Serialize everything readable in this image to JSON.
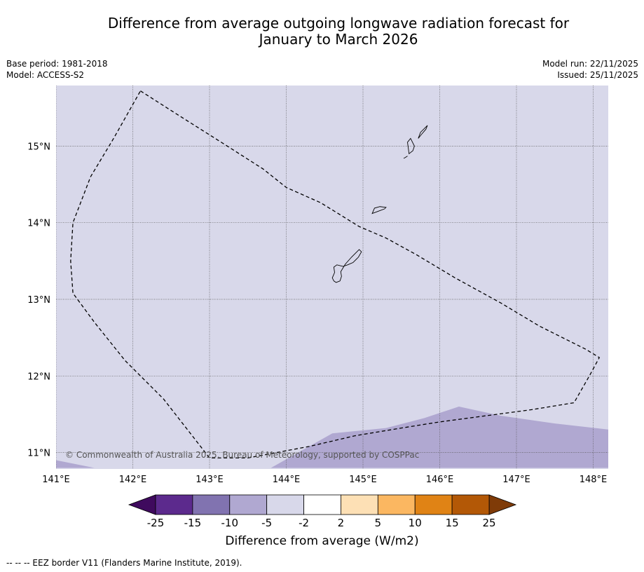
{
  "title_line1": "Difference from average outgoing longwave radiation forecast for",
  "title_line2": "January to March 2026",
  "base_period": "Base period: 1981-2018",
  "model": "Model: ACCESS-S2",
  "model_run": "Model run: 22/11/2025",
  "issued": "Issued: 25/11/2025",
  "copyright": "© Commonwealth of Australia 2025, Bureau of Meteorology, supported by COSPPac",
  "lon_labels": [
    "141°E",
    "142°E",
    "143°E",
    "144°E",
    "145°E",
    "146°E",
    "147°E",
    "148°E"
  ],
  "lat_labels": [
    "15°N",
    "14°N",
    "13°N",
    "12°N",
    "11°N"
  ],
  "colorbar": {
    "ticks": [
      "-25",
      "-15",
      "-10",
      "-5",
      "-2",
      "2",
      "5",
      "10",
      "15",
      "25"
    ],
    "colors": [
      "#3f0a5e",
      "#5c2a8d",
      "#8173b0",
      "#b0a8d1",
      "#d8d8ea",
      "#ffffff",
      "#fde0b5",
      "#fbb761",
      "#e08315",
      "#b35806",
      "#7f3b08"
    ],
    "label": "Difference from average (W/m2)"
  },
  "footnote": "--  --  -- EEZ border V11 (Flanders Marine Institute, 2019).",
  "map": {
    "lon_range": [
      141.0,
      148.2
    ],
    "lat_range": [
      10.8,
      15.8
    ],
    "background_fill": "#d8d8ea",
    "anomaly_fill": "#b0a8d1",
    "anomaly_region": [
      [
        141.0,
        10.9
      ],
      [
        141.5,
        10.8
      ],
      [
        143.8,
        10.8
      ],
      [
        144.6,
        11.25
      ],
      [
        145.3,
        11.32
      ],
      [
        145.8,
        11.45
      ],
      [
        146.25,
        11.6
      ],
      [
        146.8,
        11.48
      ],
      [
        147.5,
        11.38
      ],
      [
        148.2,
        11.3
      ],
      [
        148.2,
        10.8
      ],
      [
        141.0,
        10.8
      ]
    ],
    "eez_border": [
      [
        142.1,
        15.72
      ],
      [
        142.6,
        15.4
      ],
      [
        143.2,
        15.02
      ],
      [
        143.7,
        14.7
      ],
      [
        144.0,
        14.46
      ],
      [
        144.45,
        14.26
      ],
      [
        144.95,
        13.95
      ],
      [
        145.3,
        13.8
      ],
      [
        145.7,
        13.58
      ],
      [
        146.2,
        13.28
      ],
      [
        146.8,
        12.95
      ],
      [
        147.3,
        12.65
      ],
      [
        147.9,
        12.35
      ],
      [
        148.08,
        12.24
      ],
      [
        147.95,
        12.0
      ],
      [
        147.75,
        11.65
      ],
      [
        147.2,
        11.56
      ],
      [
        146.6,
        11.48
      ],
      [
        146.0,
        11.4
      ],
      [
        145.5,
        11.32
      ],
      [
        144.9,
        11.22
      ],
      [
        144.3,
        11.08
      ],
      [
        143.5,
        10.93
      ],
      [
        143.0,
        10.93
      ],
      [
        142.4,
        11.7
      ],
      [
        141.9,
        12.2
      ],
      [
        141.5,
        12.7
      ],
      [
        141.22,
        13.08
      ],
      [
        141.19,
        13.5
      ],
      [
        141.22,
        14.0
      ],
      [
        141.45,
        14.6
      ],
      [
        141.75,
        15.1
      ],
      [
        142.1,
        15.72
      ]
    ],
    "islands": [
      [
        [
          144.65,
          13.22
        ],
        [
          144.7,
          13.24
        ],
        [
          144.72,
          13.3
        ],
        [
          144.71,
          13.36
        ],
        [
          144.77,
          13.46
        ],
        [
          144.85,
          13.55
        ],
        [
          144.9,
          13.6
        ],
        [
          144.95,
          13.65
        ],
        [
          144.98,
          13.62
        ],
        [
          144.94,
          13.55
        ],
        [
          144.87,
          13.48
        ],
        [
          144.8,
          13.45
        ],
        [
          144.74,
          13.43
        ],
        [
          144.66,
          13.45
        ],
        [
          144.62,
          13.42
        ],
        [
          144.63,
          13.35
        ],
        [
          144.6,
          13.28
        ],
        [
          144.62,
          13.24
        ],
        [
          144.65,
          13.22
        ]
      ],
      [
        [
          145.12,
          14.12
        ],
        [
          145.2,
          14.15
        ],
        [
          145.28,
          14.18
        ],
        [
          145.3,
          14.2
        ],
        [
          145.22,
          14.21
        ],
        [
          145.15,
          14.19
        ],
        [
          145.12,
          14.12
        ]
      ],
      [
        [
          145.6,
          14.9
        ],
        [
          145.65,
          14.94
        ],
        [
          145.67,
          15.0
        ],
        [
          145.62,
          15.1
        ],
        [
          145.58,
          15.05
        ],
        [
          145.6,
          14.9
        ]
      ],
      [
        [
          145.72,
          15.1
        ],
        [
          145.75,
          15.18
        ],
        [
          145.8,
          15.23
        ],
        [
          145.84,
          15.27
        ],
        [
          145.82,
          15.22
        ],
        [
          145.76,
          15.15
        ],
        [
          145.72,
          15.1
        ]
      ],
      [
        [
          145.53,
          14.84
        ],
        [
          145.55,
          14.85
        ],
        [
          145.58,
          14.87
        ]
      ]
    ]
  }
}
